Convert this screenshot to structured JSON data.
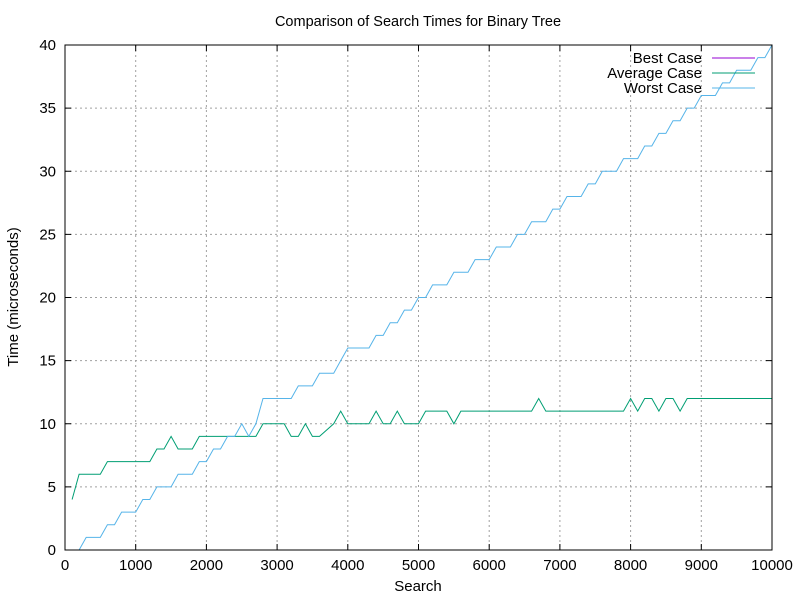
{
  "chart_data": {
    "type": "line",
    "title": "Comparison of Search Times for Binary Tree",
    "xlabel": "Search",
    "ylabel": "Time (microseconds)",
    "xlim": [
      0,
      10000
    ],
    "ylim": [
      0,
      40
    ],
    "xticks": [
      0,
      1000,
      2000,
      3000,
      4000,
      5000,
      6000,
      7000,
      8000,
      9000,
      10000
    ],
    "yticks": [
      0,
      5,
      10,
      15,
      20,
      25,
      30,
      35,
      40
    ],
    "grid": true,
    "legend_position": "top-right",
    "series": [
      {
        "name": "Best Case",
        "color": "#9400d3",
        "x": [],
        "y": []
      },
      {
        "name": "Average Case",
        "color": "#009e73",
        "x": [
          100,
          200,
          500,
          600,
          1200,
          1300,
          1400,
          1500,
          1600,
          1800,
          1900,
          2700,
          2800,
          3100,
          3200,
          3300,
          3400,
          3500,
          3600,
          3800,
          3900,
          4000,
          4300,
          4400,
          4500,
          4600,
          4700,
          4800,
          5000,
          5100,
          5400,
          5500,
          5600,
          6600,
          6700,
          6800,
          7900,
          8000,
          8100,
          8200,
          8300,
          8400,
          8500,
          8600,
          8700,
          8800,
          10000
        ],
        "y": [
          4,
          6,
          6,
          7,
          7,
          8,
          8,
          9,
          8,
          8,
          9,
          9,
          10,
          10,
          9,
          9,
          10,
          9,
          9,
          10,
          11,
          10,
          10,
          11,
          10,
          10,
          11,
          10,
          10,
          11,
          11,
          10,
          11,
          11,
          12,
          11,
          11,
          12,
          11,
          12,
          12,
          11,
          12,
          12,
          11,
          12,
          12
        ]
      },
      {
        "name": "Worst Case",
        "color": "#56b4e9",
        "x": [
          200,
          300,
          400,
          500,
          600,
          700,
          800,
          900,
          1000,
          1100,
          1200,
          1300,
          1400,
          1500,
          1600,
          1700,
          1800,
          1900,
          2000,
          2100,
          2200,
          2300,
          2400,
          2500,
          2600,
          2700,
          2800,
          2900,
          3000,
          3100,
          3200,
          3300,
          3400,
          3500,
          3600,
          3700,
          3800,
          3900,
          4000,
          4100,
          4200,
          4300,
          4400,
          4500,
          4600,
          4700,
          4800,
          4900,
          5000,
          5100,
          5200,
          5300,
          5400,
          5500,
          5600,
          5700,
          5800,
          5900,
          6000,
          6100,
          6200,
          6300,
          6400,
          6500,
          6600,
          6700,
          6800,
          6900,
          7000,
          7100,
          7200,
          7300,
          7400,
          7500,
          7600,
          7700,
          7800,
          7900,
          8000,
          8100,
          8200,
          8300,
          8400,
          8500,
          8600,
          8700,
          8800,
          8900,
          9000,
          9100,
          9200,
          9300,
          9400,
          9500,
          9600,
          9700,
          9800,
          9900,
          10000
        ],
        "y": [
          0,
          1,
          1,
          1,
          2,
          2,
          3,
          3,
          3,
          4,
          4,
          5,
          5,
          5,
          6,
          6,
          6,
          7,
          7,
          8,
          8,
          9,
          9,
          10,
          9,
          10,
          12,
          12,
          12,
          12,
          12,
          13,
          13,
          13,
          14,
          14,
          14,
          15,
          16,
          16,
          16,
          16,
          17,
          17,
          18,
          18,
          19,
          19,
          20,
          20,
          21,
          21,
          21,
          22,
          22,
          22,
          23,
          23,
          23,
          24,
          24,
          24,
          25,
          25,
          26,
          26,
          26,
          27,
          27,
          28,
          28,
          28,
          29,
          29,
          30,
          30,
          30,
          31,
          31,
          31,
          32,
          32,
          33,
          33,
          34,
          34,
          35,
          35,
          36,
          36,
          36,
          37,
          37,
          38,
          38,
          38,
          39,
          39,
          40
        ]
      }
    ]
  }
}
